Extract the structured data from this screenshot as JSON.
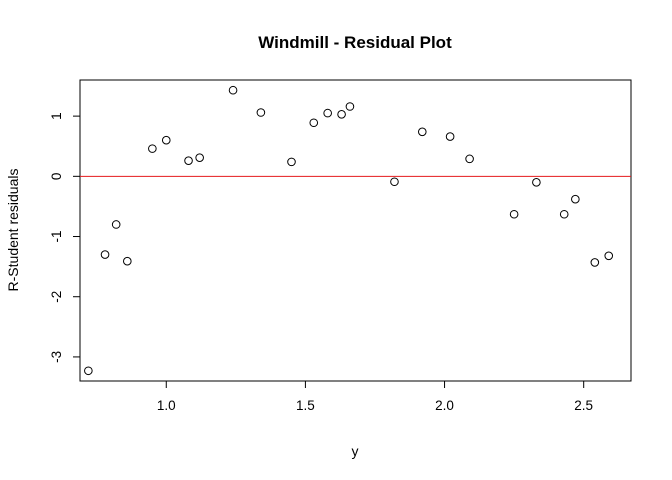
{
  "chart_data": {
    "type": "scatter",
    "title": "Windmill - Residual Plot",
    "xlabel": "y",
    "ylabel": "R-Student residuals",
    "xlim": [
      0.69,
      2.67
    ],
    "ylim": [
      -3.4,
      1.6
    ],
    "x_ticks": [
      1.0,
      1.5,
      2.0,
      2.5
    ],
    "x_tick_labels": [
      "1.0",
      "1.5",
      "2.0",
      "2.5"
    ],
    "y_ticks": [
      -3,
      -2,
      -1,
      0,
      1
    ],
    "y_tick_labels": [
      "-3",
      "-2",
      "-1",
      "0",
      "1"
    ],
    "reference_line": {
      "y": 0,
      "color": "#e41a1c"
    },
    "grid": false,
    "marker": "open-circle",
    "points": [
      {
        "x": 0.72,
        "y": -3.23
      },
      {
        "x": 0.78,
        "y": -1.3
      },
      {
        "x": 0.82,
        "y": -0.8
      },
      {
        "x": 0.86,
        "y": -1.41
      },
      {
        "x": 0.95,
        "y": 0.46
      },
      {
        "x": 1.0,
        "y": 0.6
      },
      {
        "x": 1.08,
        "y": 0.26
      },
      {
        "x": 1.12,
        "y": 0.31
      },
      {
        "x": 1.24,
        "y": 1.43
      },
      {
        "x": 1.34,
        "y": 1.06
      },
      {
        "x": 1.45,
        "y": 0.24
      },
      {
        "x": 1.53,
        "y": 0.89
      },
      {
        "x": 1.58,
        "y": 1.05
      },
      {
        "x": 1.63,
        "y": 1.03
      },
      {
        "x": 1.66,
        "y": 1.16
      },
      {
        "x": 1.82,
        "y": -0.09
      },
      {
        "x": 1.92,
        "y": 0.74
      },
      {
        "x": 2.02,
        "y": 0.66
      },
      {
        "x": 2.09,
        "y": 0.29
      },
      {
        "x": 2.25,
        "y": -0.63
      },
      {
        "x": 2.33,
        "y": -0.1
      },
      {
        "x": 2.43,
        "y": -0.63
      },
      {
        "x": 2.47,
        "y": -0.38
      },
      {
        "x": 2.54,
        "y": -1.43
      },
      {
        "x": 2.59,
        "y": -1.32
      }
    ]
  }
}
